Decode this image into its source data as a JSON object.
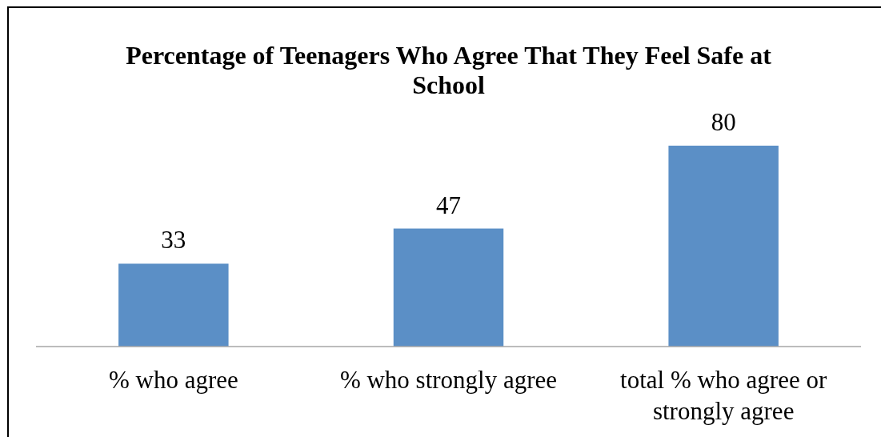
{
  "chart_data": {
    "type": "bar",
    "title": "Percentage of Teenagers Who Agree That They Feel Safe at School",
    "categories": [
      "% who agree",
      "% who strongly agree",
      "total % who agree or strongly agree"
    ],
    "values": [
      33,
      47,
      80
    ],
    "color": "#5b8fc6",
    "data_labels": true
  }
}
